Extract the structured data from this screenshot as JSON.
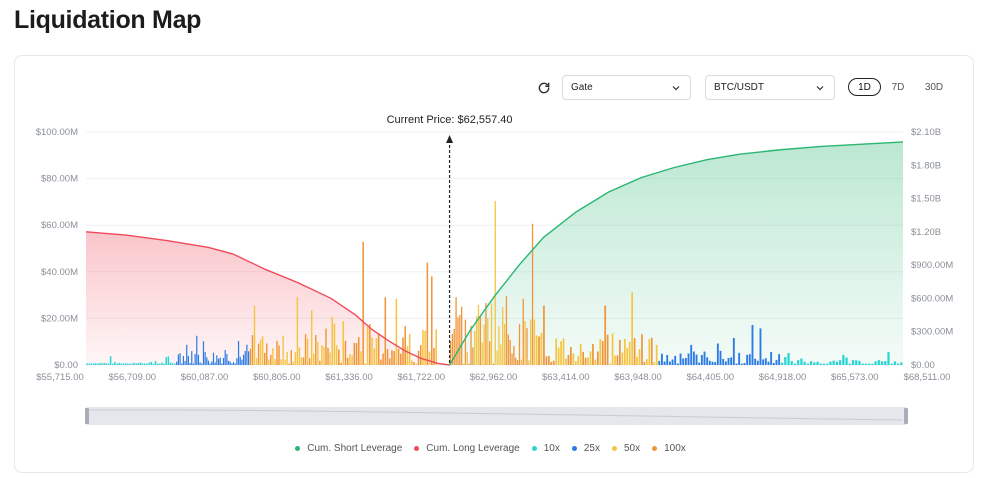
{
  "page": {
    "title": "Liquidation Map"
  },
  "controls": {
    "exchange": "Gate",
    "pair": "BTC/USDT",
    "ranges": [
      {
        "label": "1D",
        "active": true
      },
      {
        "label": "7D",
        "active": false
      },
      {
        "label": "30D",
        "active": false
      }
    ]
  },
  "chart_data": {
    "type": "bar",
    "title": "",
    "annotation": "Current Price: $62,557.40",
    "current_price": 62557.4,
    "x_tick_labels": [
      "$55,715.00",
      "$56,709.00",
      "$60,087.00",
      "$60,805.00",
      "$61,336.00",
      "$61,722.00",
      "$62,962.00",
      "$63,414.00",
      "$63,948.00",
      "$64,405.00",
      "$64,918.00",
      "$65,573.00",
      "$68,511.00"
    ],
    "y_left": {
      "ticks": [
        "$0.00",
        "$20.00M",
        "$40.00M",
        "$60.00M",
        "$80.00M",
        "$100.00M"
      ],
      "min": 0,
      "max": 100,
      "unit": "M USD"
    },
    "y_right": {
      "ticks": [
        "$0.00",
        "$300.00M",
        "$600.00M",
        "$900.00M",
        "$1.20B",
        "$1.50B",
        "$1.80B",
        "$2.10B"
      ],
      "min": 0,
      "max": 2100,
      "unit": "M USD"
    },
    "legend": [
      {
        "name": "Cum. Short Leverage",
        "color": "#2bb673"
      },
      {
        "name": "Cum. Long Leverage",
        "color": "#ef4b5a"
      },
      {
        "name": "10x",
        "color": "#2ad4d4"
      },
      {
        "name": "25x",
        "color": "#2c7be5"
      },
      {
        "name": "50x",
        "color": "#f5c542"
      },
      {
        "name": "100x",
        "color": "#f0953a"
      }
    ],
    "cumulative_long": {
      "name": "Cum. Long Leverage",
      "axis": "right",
      "x_frac": [
        0.0,
        0.05,
        0.1,
        0.15,
        0.18,
        0.22,
        0.26,
        0.3,
        0.33,
        0.35,
        0.37,
        0.39,
        0.41,
        0.43,
        0.445
      ],
      "values": [
        1200,
        1170,
        1120,
        1060,
        1000,
        860,
        740,
        600,
        450,
        320,
        220,
        130,
        60,
        15,
        0
      ]
    },
    "cumulative_short": {
      "name": "Cum. Short Leverage",
      "axis": "right",
      "x_frac": [
        0.445,
        0.47,
        0.5,
        0.53,
        0.56,
        0.6,
        0.64,
        0.68,
        0.72,
        0.76,
        0.8,
        0.85,
        0.9,
        0.95,
        1.0
      ],
      "values": [
        0,
        310,
        620,
        900,
        1150,
        1380,
        1560,
        1690,
        1780,
        1850,
        1900,
        1940,
        1970,
        1990,
        2010
      ]
    },
    "leverage_bars": {
      "axis": "left",
      "categories": [
        "10x",
        "25x",
        "50x",
        "100x"
      ],
      "segments": [
        {
          "from": 0.0,
          "to": 0.11,
          "leverage": "10x",
          "count": 42,
          "max": 4
        },
        {
          "from": 0.11,
          "to": 0.2,
          "leverage": "25x",
          "count": 44,
          "max": 19
        },
        {
          "from": 0.2,
          "to": 0.3,
          "leverage": "50x",
          "count": 40,
          "max": 40
        },
        {
          "from": 0.3,
          "to": 0.43,
          "leverage": "100x",
          "count": 48,
          "max": 55
        },
        {
          "from": 0.445,
          "to": 0.55,
          "leverage": "100x",
          "count": 46,
          "max": 85
        },
        {
          "from": 0.55,
          "to": 0.7,
          "leverage": "50x",
          "count": 50,
          "max": 40
        },
        {
          "from": 0.7,
          "to": 0.85,
          "leverage": "25x",
          "count": 46,
          "max": 18
        },
        {
          "from": 0.85,
          "to": 1.0,
          "leverage": "10x",
          "count": 38,
          "max": 6
        }
      ]
    },
    "range_slider": {
      "start": 0.0,
      "end": 1.0
    }
  }
}
